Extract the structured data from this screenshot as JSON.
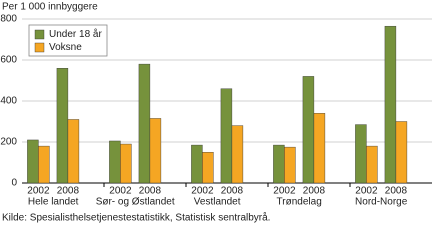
{
  "chart_data": {
    "type": "bar",
    "ylabel": "Per 1 000 innbyggere",
    "groups": [
      "Hele landet",
      "Sør- og Østlandet",
      "Vestlandet",
      "Trøndelag",
      "Nord-Norge"
    ],
    "categories": [
      "2002",
      "2008",
      "2002",
      "2008",
      "2002",
      "2008",
      "2002",
      "2008",
      "2002",
      "2008"
    ],
    "series": [
      {
        "name": "Under 18 år",
        "color": "#76923c",
        "values": [
          210,
          560,
          205,
          580,
          185,
          460,
          185,
          520,
          285,
          765
        ]
      },
      {
        "name": "Voksne",
        "color": "#f5a623",
        "values": [
          180,
          310,
          190,
          315,
          150,
          280,
          175,
          340,
          180,
          300
        ]
      }
    ],
    "ylim": [
      0,
      800
    ],
    "yticks": [
      0,
      200,
      400,
      600,
      800
    ],
    "grid": true,
    "legend": "top-left",
    "source": "Kilde: Spesialisthelsetjenestestatistikk, Statistisk sentralbyrå."
  }
}
